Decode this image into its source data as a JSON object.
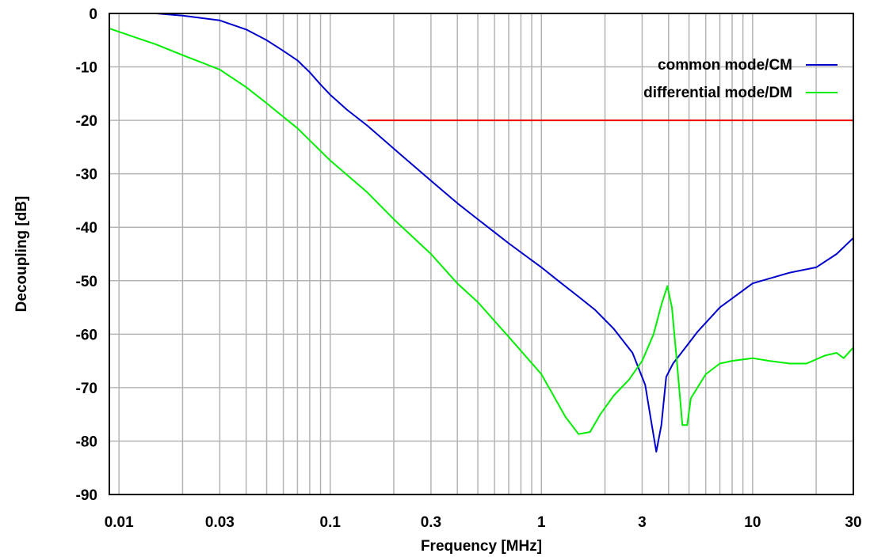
{
  "chart_data": {
    "type": "line",
    "title": "",
    "xlabel": "Frequency [MHz]",
    "ylabel": "Decoupling [dB]",
    "x_scale": "log",
    "xlim": [
      0.009,
      30
    ],
    "ylim": [
      -90,
      0
    ],
    "grid": true,
    "legend_position": "top-right",
    "x_ticks": [
      {
        "value": 0.01,
        "label": "0.01"
      },
      {
        "value": 0.03,
        "label": "0.03"
      },
      {
        "value": 0.1,
        "label": "0.1"
      },
      {
        "value": 0.3,
        "label": "0.3"
      },
      {
        "value": 1,
        "label": "1"
      },
      {
        "value": 3,
        "label": "3"
      },
      {
        "value": 10,
        "label": "10"
      },
      {
        "value": 30,
        "label": "30"
      }
    ],
    "y_ticks": [
      {
        "value": 0,
        "label": "0"
      },
      {
        "value": -10,
        "label": "-10"
      },
      {
        "value": -20,
        "label": "-20"
      },
      {
        "value": -30,
        "label": "-30"
      },
      {
        "value": -40,
        "label": "-40"
      },
      {
        "value": -50,
        "label": "-50"
      },
      {
        "value": -60,
        "label": "-60"
      },
      {
        "value": -70,
        "label": "-70"
      },
      {
        "value": -80,
        "label": "-80"
      },
      {
        "value": -90,
        "label": "-90"
      }
    ],
    "series": [
      {
        "name": "common mode/CM",
        "color": "#0000cc",
        "points": [
          [
            0.009,
            0
          ],
          [
            0.015,
            0
          ],
          [
            0.02,
            -0.4
          ],
          [
            0.03,
            -1.3
          ],
          [
            0.04,
            -3
          ],
          [
            0.05,
            -5
          ],
          [
            0.06,
            -7
          ],
          [
            0.07,
            -8.8
          ],
          [
            0.08,
            -11
          ],
          [
            0.09,
            -13.3
          ],
          [
            0.1,
            -15.2
          ],
          [
            0.12,
            -18
          ],
          [
            0.15,
            -21
          ],
          [
            0.2,
            -25.3
          ],
          [
            0.3,
            -31.3
          ],
          [
            0.4,
            -35.5
          ],
          [
            0.5,
            -38.5
          ],
          [
            0.7,
            -43
          ],
          [
            1,
            -47.5
          ],
          [
            1.2,
            -50
          ],
          [
            1.5,
            -53
          ],
          [
            1.8,
            -55.5
          ],
          [
            2.2,
            -59
          ],
          [
            2.7,
            -63.5
          ],
          [
            3.1,
            -69.5
          ],
          [
            3.3,
            -76
          ],
          [
            3.5,
            -82
          ],
          [
            3.7,
            -77
          ],
          [
            3.9,
            -68
          ],
          [
            4.2,
            -65.5
          ],
          [
            4.6,
            -63.5
          ],
          [
            5.5,
            -59.5
          ],
          [
            7,
            -55
          ],
          [
            10,
            -50.5
          ],
          [
            15,
            -48.5
          ],
          [
            20,
            -47.5
          ],
          [
            25,
            -45
          ],
          [
            30,
            -42
          ]
        ]
      },
      {
        "name": "differential mode/DM",
        "color": "#00ee00",
        "points": [
          [
            0.009,
            -2.8
          ],
          [
            0.012,
            -4.5
          ],
          [
            0.015,
            -5.8
          ],
          [
            0.02,
            -7.8
          ],
          [
            0.03,
            -10.5
          ],
          [
            0.04,
            -13.8
          ],
          [
            0.05,
            -16.8
          ],
          [
            0.07,
            -21.5
          ],
          [
            0.1,
            -27.5
          ],
          [
            0.15,
            -33.5
          ],
          [
            0.2,
            -38.5
          ],
          [
            0.3,
            -45
          ],
          [
            0.4,
            -50.5
          ],
          [
            0.5,
            -54
          ],
          [
            0.7,
            -60.5
          ],
          [
            1,
            -67.5
          ],
          [
            1.3,
            -75.5
          ],
          [
            1.5,
            -78.7
          ],
          [
            1.7,
            -78.3
          ],
          [
            1.9,
            -75
          ],
          [
            2.2,
            -71.5
          ],
          [
            2.6,
            -68.5
          ],
          [
            3,
            -65
          ],
          [
            3.4,
            -60
          ],
          [
            3.7,
            -54.5
          ],
          [
            3.95,
            -51
          ],
          [
            4.15,
            -55
          ],
          [
            4.4,
            -66
          ],
          [
            4.65,
            -77
          ],
          [
            4.9,
            -77
          ],
          [
            5.1,
            -72
          ],
          [
            6,
            -67.5
          ],
          [
            7,
            -65.5
          ],
          [
            8,
            -65
          ],
          [
            10,
            -64.5
          ],
          [
            12,
            -65
          ],
          [
            15,
            -65.5
          ],
          [
            18,
            -65.5
          ],
          [
            22,
            -64
          ],
          [
            25,
            -63.5
          ],
          [
            27,
            -64.5
          ],
          [
            30,
            -62.5
          ]
        ]
      },
      {
        "name": "",
        "color": "#ee0000",
        "points": [
          [
            0.15,
            -20
          ],
          [
            30,
            -20
          ]
        ]
      }
    ],
    "legend": [
      {
        "label": "common mode/CM",
        "color": "#0000cc"
      },
      {
        "label": "differential mode/DM",
        "color": "#00ee00"
      }
    ]
  }
}
